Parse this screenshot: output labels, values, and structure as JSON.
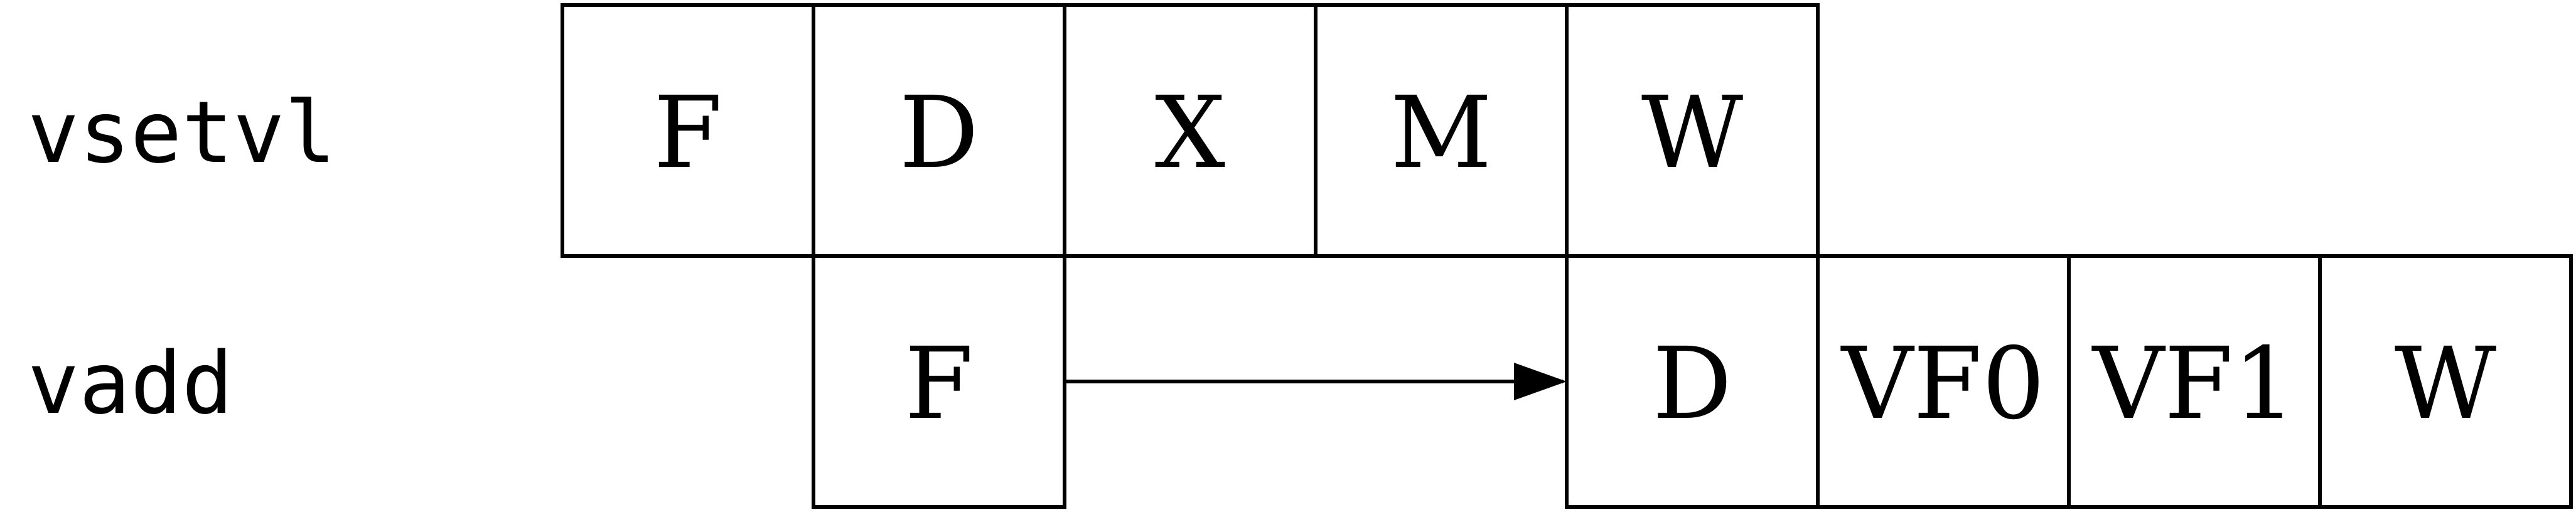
{
  "rows": [
    {
      "instruction": "vsetvl",
      "stages": [
        {
          "label": "F",
          "slot": 0
        },
        {
          "label": "D",
          "slot": 1
        },
        {
          "label": "X",
          "slot": 2
        },
        {
          "label": "M",
          "slot": 3
        },
        {
          "label": "W",
          "slot": 4
        }
      ]
    },
    {
      "instruction": "vadd",
      "stages": [
        {
          "label": "F",
          "slot": 1
        },
        {
          "label": "D",
          "slot": 4
        },
        {
          "label": "VF0",
          "slot": 5
        },
        {
          "label": "VF1",
          "slot": 6
        },
        {
          "label": "W",
          "slot": 7
        }
      ]
    }
  ],
  "arrows": [
    {
      "row": 1,
      "from_slot": 1,
      "to_slot": 4
    }
  ]
}
